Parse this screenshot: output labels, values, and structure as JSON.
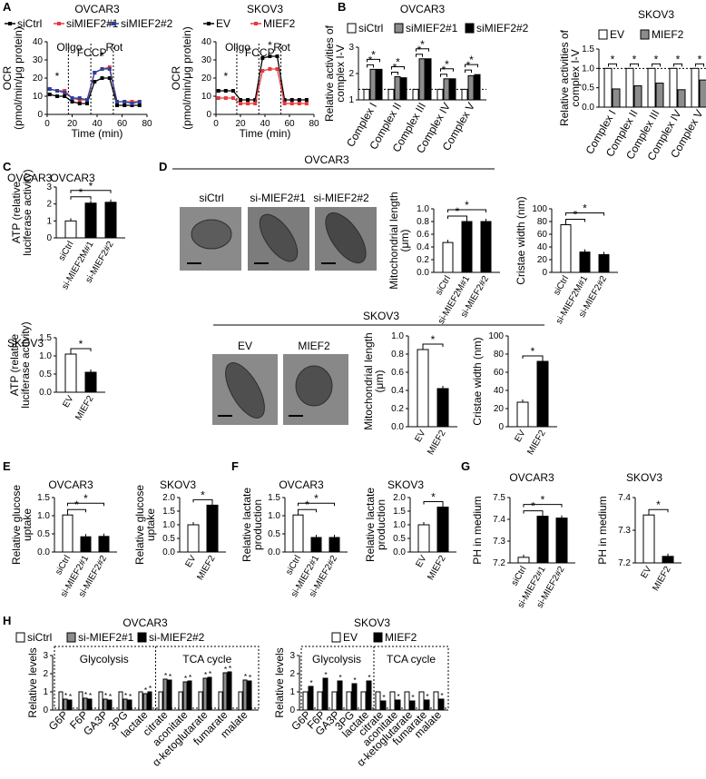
{
  "panel_letters": [
    "A",
    "B",
    "C",
    "D",
    "E",
    "F",
    "G",
    "H"
  ],
  "panelA": {
    "ocr_left": {
      "title": "OVCAR3",
      "ylabel": [
        "OCR",
        "(pmol/min/μg protein)"
      ],
      "xlabel": "Time (min)",
      "yticks": [
        "0",
        "10",
        "20",
        "30",
        "40"
      ],
      "xticks": [
        "0",
        "20",
        "40",
        "60",
        "80"
      ],
      "injections": [
        "Oligo",
        "FCCP",
        "Rot"
      ],
      "legend": [
        "siCtrl",
        "siMIEF2#1",
        "siMIEF2#2"
      ],
      "colors": [
        "#000000",
        "#e8383d",
        "#2c3e9e"
      ],
      "chart_data": {
        "type": "line",
        "x": [
          2,
          8,
          14,
          20,
          26,
          32,
          38,
          44,
          50,
          56,
          62,
          68,
          74
        ],
        "series": [
          {
            "name": "siCtrl",
            "values": [
              11,
              10,
              10,
              7,
              6,
              6,
              18,
              20,
              20,
              5,
              5,
              5,
              5
            ]
          },
          {
            "name": "siMIEF2#1",
            "values": [
              14,
              13,
              13,
              9,
              8,
              8,
              23,
              25,
              26,
              7,
              7,
              7,
              7
            ]
          },
          {
            "name": "siMIEF2#2",
            "values": [
              14,
              13,
              12,
              9,
              9,
              8,
              23,
              25,
              25,
              7,
              7,
              6,
              7
            ]
          }
        ],
        "xlim": [
          0,
          80
        ],
        "ylim": [
          0,
          40
        ]
      },
      "sig": "*"
    },
    "ocr_right": {
      "title": "SKOV3",
      "ylabel": [
        "OCR",
        "(pmol/min/μg protein)"
      ],
      "xlabel": "Time (min)",
      "yticks": [
        "0",
        "10",
        "20",
        "30",
        "40"
      ],
      "xticks": [
        "0",
        "20",
        "40",
        "60",
        "80"
      ],
      "injections": [
        "Oligo",
        "FCCP",
        "Rot"
      ],
      "legend": [
        "EV",
        "MIEF2"
      ],
      "colors": [
        "#000000",
        "#e8383d"
      ],
      "chart_data": {
        "type": "line",
        "x": [
          2,
          8,
          14,
          20,
          26,
          32,
          38,
          44,
          50,
          56,
          62,
          68,
          74
        ],
        "series": [
          {
            "name": "EV",
            "values": [
              13,
              13,
              13,
              8,
              8,
              8,
              31,
              32,
              32,
              8,
              8,
              8,
              8
            ]
          },
          {
            "name": "MIEF2",
            "values": [
              9,
              9,
              9,
              6,
              6,
              6,
              24,
              25,
              25,
              6,
              6,
              6,
              6
            ]
          }
        ],
        "xlim": [
          0,
          80
        ],
        "ylim": [
          0,
          40
        ]
      },
      "sig": "*"
    }
  },
  "panelB": {
    "left": {
      "title": "OVCAR3",
      "ylabel": [
        "Relative activities of",
        "complex I-V"
      ],
      "legend": [
        "siCtrl",
        "siMIEF2#1",
        "siMIEF2#2"
      ],
      "yticks": [
        "1",
        "2",
        "3"
      ],
      "chart_data": {
        "type": "bar",
        "categories": [
          "Complex I",
          "Complex II",
          "Complex III",
          "Complex IV",
          "Complex V"
        ],
        "series": [
          {
            "name": "siCtrl",
            "values": [
              1,
              1,
              1,
              1,
              1
            ]
          },
          {
            "name": "siMIEF2#1",
            "values": [
              1.95,
              1.6,
              2.45,
              1.5,
              1.65
            ]
          },
          {
            "name": "siMIEF2#2",
            "values": [
              1.95,
              1.55,
              2.45,
              1.5,
              1.7
            ]
          }
        ],
        "ylim": [
          0.5,
          3
        ]
      }
    },
    "right": {
      "title": "SKOV3",
      "ylabel": [
        "Relative activities of",
        "complex I-V"
      ],
      "legend": [
        "EV",
        "MIEF2"
      ],
      "yticks": [
        "0.0",
        "0.5",
        "1.0",
        "1.5"
      ],
      "chart_data": {
        "type": "bar",
        "categories": [
          "Complex I",
          "Complex II",
          "Complex III",
          "Complex IV",
          "Complex V"
        ],
        "series": [
          {
            "name": "EV",
            "values": [
              1,
              1,
              1,
              1,
              1
            ]
          },
          {
            "name": "MIEF2",
            "values": [
              0.47,
              0.55,
              0.62,
              0.45,
              0.7
            ]
          }
        ],
        "ylim": [
          0,
          1.5
        ]
      }
    }
  },
  "panelC": {
    "ovcar": {
      "title": "OVCAR3",
      "ylabel": [
        "ATP (relative",
        "luciferase activity)"
      ],
      "yticks": [
        "0",
        "1",
        "2",
        "3"
      ],
      "chart_data": {
        "type": "bar",
        "categories": [
          "siCtrl",
          "si-MIEF2M#1",
          "si-MIEF2#2"
        ],
        "values": [
          1,
          2.05,
          2.1
        ],
        "ylim": [
          0,
          3
        ]
      }
    },
    "skov": {
      "title": "SKOV3",
      "ylabel": [
        "ATP (relative",
        "luciferase activity)"
      ],
      "yticks": [
        "0.0",
        "0.5",
        "1.0",
        "1.5"
      ],
      "chart_data": {
        "type": "bar",
        "categories": [
          "EV",
          "MIEF2"
        ],
        "values": [
          1.05,
          0.55
        ],
        "ylim": [
          0,
          1.5
        ]
      }
    }
  },
  "panelD": {
    "ovcar_title": "OVCAR3",
    "ovcar_images": [
      "siCtrl",
      "si-MIEF2#1",
      "si-MIEF2#2"
    ],
    "skov_title": "SKOV3",
    "skov_images": [
      "EV",
      "MIEF2"
    ],
    "ovcar_len": {
      "ylabel": [
        "Mitochondrial length",
        "(μm)"
      ],
      "yticks": [
        "0.0",
        "0.2",
        "0.4",
        "0.6",
        "0.8",
        "1.0"
      ],
      "chart_data": {
        "type": "bar",
        "categories": [
          "siCtrl",
          "si-MIEF2M#1",
          "si-MIEF2#2"
        ],
        "values": [
          0.47,
          0.8,
          0.8
        ],
        "ylim": [
          0,
          1
        ]
      }
    },
    "ovcar_cw": {
      "ylabel": [
        "Cristae width (nm)"
      ],
      "yticks": [
        "0",
        "20",
        "40",
        "60",
        "80",
        "100"
      ],
      "chart_data": {
        "type": "bar",
        "categories": [
          "siCtrl",
          "si-MIEF2M#1",
          "si-MIEF2#2"
        ],
        "values": [
          75,
          32,
          28
        ],
        "ylim": [
          0,
          100
        ]
      }
    },
    "skov_len": {
      "ylabel": [
        "Mitochondrial length",
        "(μm)"
      ],
      "yticks": [
        "0.0",
        "0.2",
        "0.4",
        "0.6",
        "0.8",
        "1.0"
      ],
      "chart_data": {
        "type": "bar",
        "categories": [
          "EV",
          "MIEF2"
        ],
        "values": [
          0.85,
          0.42
        ],
        "ylim": [
          0,
          1
        ]
      }
    },
    "skov_cw": {
      "ylabel": [
        "Cristae width (nm)"
      ],
      "yticks": [
        "0",
        "20",
        "40",
        "60",
        "80",
        "100"
      ],
      "chart_data": {
        "type": "bar",
        "categories": [
          "EV",
          "MIEF2"
        ],
        "values": [
          27,
          72
        ],
        "ylim": [
          0,
          100
        ]
      }
    }
  },
  "panelE": {
    "ovcar": {
      "title": "OVCAR3",
      "ylabel": [
        "Relative glucose",
        "uptake"
      ],
      "yticks": [
        "0.0",
        "0.5",
        "1.0",
        "1.5"
      ],
      "chart_data": {
        "type": "bar",
        "categories": [
          "siCtrl",
          "si-MIEF2#1",
          "si-MIEF2#2"
        ],
        "values": [
          1.02,
          0.42,
          0.43
        ],
        "ylim": [
          0,
          1.5
        ]
      }
    },
    "skov": {
      "title": "SKOV3",
      "ylabel": [
        "Relative glucose",
        "uptake"
      ],
      "yticks": [
        "0.0",
        "0.5",
        "1.0",
        "1.5",
        "2.0"
      ],
      "chart_data": {
        "type": "bar",
        "categories": [
          "EV",
          "MIEF2"
        ],
        "values": [
          1.0,
          1.72
        ],
        "ylim": [
          0,
          2
        ]
      }
    }
  },
  "panelF": {
    "ovcar": {
      "title": "OVCAR3",
      "ylabel": [
        "Relative lactate",
        "production"
      ],
      "yticks": [
        "0.0",
        "0.5",
        "1.0",
        "1.5"
      ],
      "chart_data": {
        "type": "bar",
        "categories": [
          "siCtrl",
          "si-MIEF2#1",
          "si-MIEF2#2"
        ],
        "values": [
          1.02,
          0.4,
          0.4
        ],
        "ylim": [
          0,
          1.5
        ]
      }
    },
    "skov": {
      "title": "SKOV3",
      "ylabel": [
        "Relative lactate",
        "production"
      ],
      "yticks": [
        "0.0",
        "0.5",
        "1.0",
        "1.5",
        "2.0"
      ],
      "chart_data": {
        "type": "bar",
        "categories": [
          "EV",
          "MIEF2"
        ],
        "values": [
          1.0,
          1.65
        ],
        "ylim": [
          0,
          2
        ]
      }
    }
  },
  "panelG": {
    "ovcar": {
      "title": "OVCAR3",
      "ylabel": [
        "PH in medium"
      ],
      "yticks": [
        "7.2",
        "7.3",
        "7.4",
        "7.5"
      ],
      "chart_data": {
        "type": "bar",
        "categories": [
          "siCtrl",
          "si-MIEF2#1",
          "si-MIEF2#2"
        ],
        "values": [
          7.18,
          7.4,
          7.39
        ],
        "ylim": [
          7.15,
          7.5
        ]
      }
    },
    "skov": {
      "title": "SKOV3",
      "ylabel": [
        "PH in medium"
      ],
      "yticks": [
        "7.2",
        "7.3",
        "7.4"
      ],
      "chart_data": {
        "type": "bar",
        "categories": [
          "EV",
          "MIEF2"
        ],
        "values": [
          7.37,
          7.18
        ],
        "ylim": [
          7.15,
          7.45
        ]
      }
    }
  },
  "panelH": {
    "ovcar": {
      "title": "OVCAR3",
      "legend": [
        "siCtrl",
        "si-MIEF2#1",
        "si-MIEF2#2"
      ],
      "ylabel": "Relative levels",
      "yticks": [
        "0",
        "1",
        "2",
        "3"
      ],
      "groups": [
        "Glycolysis",
        "TCA cycle"
      ],
      "chart_data": {
        "type": "bar",
        "categories": [
          "G6P",
          "F6P",
          "GA3P",
          "3PG",
          "lactate",
          "citrate",
          "aconitate",
          "α-ketoglutarate",
          "fumarate",
          "malate"
        ],
        "series": [
          {
            "name": "siCtrl",
            "values": [
              1,
              1,
              1,
              1,
              1,
              1,
              1,
              1,
              1,
              1
            ]
          },
          {
            "name": "si-MIEF2#1",
            "values": [
              0.6,
              0.65,
              0.6,
              0.6,
              0.9,
              1.7,
              1.55,
              1.75,
              2.05,
              1.65
            ]
          },
          {
            "name": "si-MIEF2#2",
            "values": [
              0.55,
              0.6,
              0.55,
              0.55,
              1.0,
              1.65,
              1.6,
              1.8,
              2.1,
              1.6
            ]
          }
        ],
        "ylim": [
          0,
          3
        ]
      }
    },
    "skov": {
      "title": "SKOV3",
      "legend": [
        "EV",
        "MIEF2"
      ],
      "ylabel": "Relative levels",
      "yticks": [
        "0",
        "1",
        "2",
        "3"
      ],
      "groups": [
        "Glycolysis",
        "TCA cycle"
      ],
      "chart_data": {
        "type": "bar",
        "categories": [
          "G6P",
          "F6P",
          "GA3P",
          "3PG",
          "lactate",
          "citrate",
          "aconitate",
          "α-ketoglutarate",
          "fumarate",
          "malate"
        ],
        "series": [
          {
            "name": "EV",
            "values": [
              1,
              1,
              1,
              1,
              1,
              1,
              1,
              1,
              1,
              1
            ]
          },
          {
            "name": "MIEF2",
            "values": [
              1.3,
              1.75,
              1.6,
              1.45,
              1.6,
              0.5,
              0.55,
              0.5,
              0.55,
              0.6
            ]
          }
        ],
        "ylim": [
          0,
          3
        ]
      }
    }
  },
  "sig_mark": "*"
}
